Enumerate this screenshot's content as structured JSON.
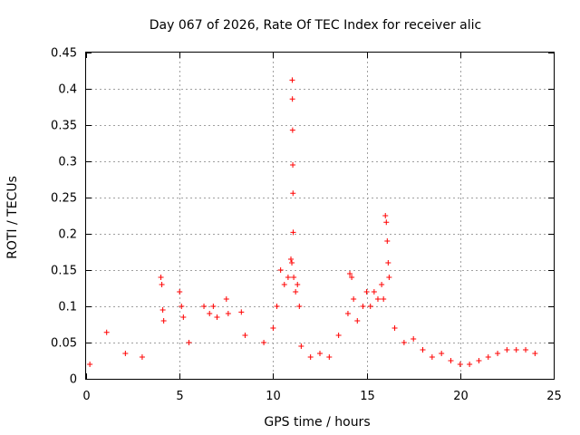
{
  "chart_data": {
    "type": "scatter",
    "title": "Day 067 of 2026, Rate Of TEC Index for receiver alic",
    "xlabel": "GPS time / hours",
    "ylabel": "ROTI / TECUs",
    "xlim": [
      0,
      25
    ],
    "ylim": [
      0,
      0.45
    ],
    "x_ticks": [
      0,
      5,
      10,
      15,
      20,
      25
    ],
    "x_tick_labels": [
      "0",
      "5",
      "10",
      "15",
      "20",
      "25"
    ],
    "y_ticks": [
      0,
      0.05,
      0.1,
      0.15,
      0.2,
      0.25,
      0.3,
      0.35,
      0.4,
      0.45
    ],
    "y_tick_labels": [
      "0",
      "0.05",
      "0.1",
      "0.15",
      "0.2",
      "0.25",
      "0.3",
      "0.35",
      "0.4",
      "0.45"
    ],
    "grid": true,
    "marker": "+",
    "series": [
      {
        "name": "ROTI",
        "color": "#ff0000",
        "x": [
          0.2,
          1.1,
          2.1,
          3.0,
          4.0,
          4.05,
          4.1,
          4.15,
          5.0,
          5.1,
          5.2,
          5.5,
          6.3,
          6.6,
          6.8,
          7.0,
          7.5,
          7.6,
          8.3,
          8.5,
          9.5,
          10.0,
          10.2,
          10.4,
          10.6,
          10.8,
          10.95,
          11.0,
          11.02,
          11.03,
          11.04,
          11.05,
          11.06,
          11.07,
          11.1,
          11.2,
          11.3,
          11.4,
          11.5,
          12.0,
          12.5,
          13.0,
          13.5,
          14.0,
          14.1,
          14.2,
          14.3,
          14.5,
          14.8,
          15.0,
          15.2,
          15.4,
          15.6,
          15.8,
          15.9,
          16.0,
          16.05,
          16.1,
          16.15,
          16.2,
          16.5,
          17.0,
          17.5,
          18.0,
          18.5,
          19.0,
          19.5,
          20.0,
          20.5,
          21.0,
          21.5,
          22.0,
          22.5,
          23.0,
          23.5,
          24.0
        ],
        "y": [
          0.02,
          0.064,
          0.035,
          0.03,
          0.14,
          0.13,
          0.095,
          0.08,
          0.12,
          0.1,
          0.085,
          0.05,
          0.1,
          0.09,
          0.1,
          0.085,
          0.11,
          0.09,
          0.092,
          0.06,
          0.05,
          0.07,
          0.1,
          0.15,
          0.13,
          0.14,
          0.165,
          0.16,
          0.412,
          0.386,
          0.343,
          0.295,
          0.256,
          0.202,
          0.14,
          0.12,
          0.13,
          0.1,
          0.045,
          0.03,
          0.035,
          0.03,
          0.06,
          0.09,
          0.145,
          0.14,
          0.11,
          0.08,
          0.1,
          0.12,
          0.1,
          0.12,
          0.11,
          0.13,
          0.11,
          0.225,
          0.216,
          0.19,
          0.16,
          0.14,
          0.07,
          0.05,
          0.055,
          0.04,
          0.03,
          0.035,
          0.025,
          0.02,
          0.02,
          0.025,
          0.03,
          0.035,
          0.04,
          0.04,
          0.04,
          0.035
        ]
      }
    ]
  }
}
